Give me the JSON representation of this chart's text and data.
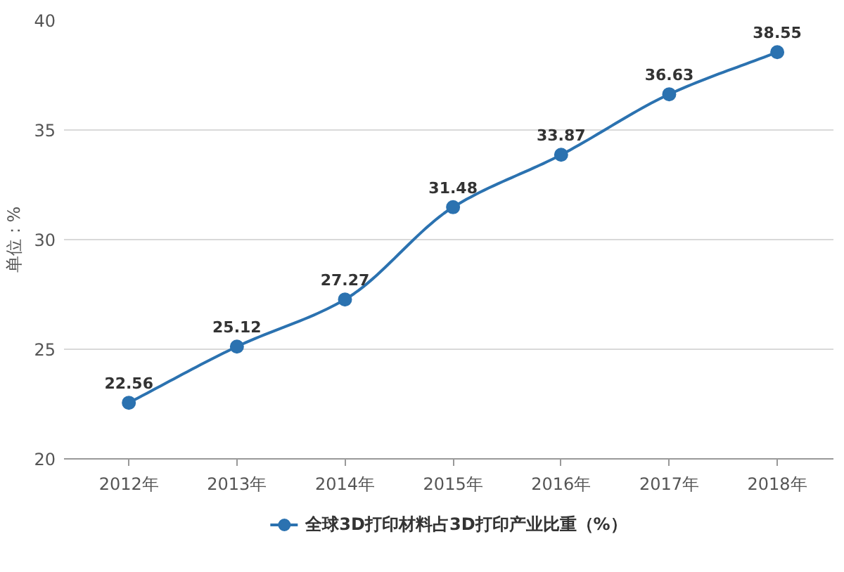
{
  "chart_data": {
    "type": "line",
    "ylabel": "单位：%",
    "categories": [
      "2012年",
      "2013年",
      "2014年",
      "2015年",
      "2016年",
      "2017年",
      "2018年"
    ],
    "series": [
      {
        "name": "全球3D打印材料占3D打印产业比重（%）",
        "color": "#2b72b0",
        "values": [
          22.56,
          25.12,
          27.27,
          31.48,
          33.87,
          36.63,
          38.55
        ]
      }
    ],
    "ylim": [
      20,
      40
    ],
    "yticks": [
      20,
      25,
      30,
      35,
      40
    ],
    "grid": "y",
    "legend": "bottom",
    "marker": "circle",
    "line_style": "solid",
    "data_labels": true
  }
}
